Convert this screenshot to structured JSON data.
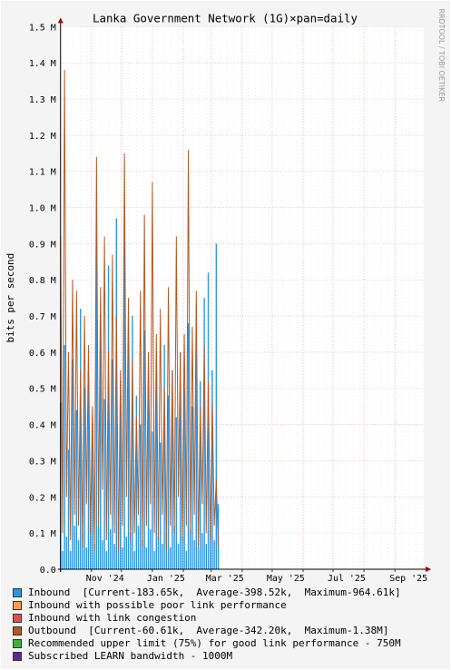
{
  "chart_data": {
    "type": "area",
    "title": "Lanka Government Network (1G)×pan=daily",
    "watermark": "RRDTOOL / TOBI OETIKER",
    "ylabel": "bits per second",
    "ylim": [
      0,
      1500000
    ],
    "y_ticks": [
      {
        "value": 0,
        "label": "0.0"
      },
      {
        "value": 100000,
        "label": "0.1 M"
      },
      {
        "value": 200000,
        "label": "0.2 M"
      },
      {
        "value": 300000,
        "label": "0.3 M"
      },
      {
        "value": 400000,
        "label": "0.4 M"
      },
      {
        "value": 500000,
        "label": "0.5 M"
      },
      {
        "value": 600000,
        "label": "0.6 M"
      },
      {
        "value": 700000,
        "label": "0.7 M"
      },
      {
        "value": 800000,
        "label": "0.8 M"
      },
      {
        "value": 900000,
        "label": "0.9 M"
      },
      {
        "value": 1000000,
        "label": "1.0 M"
      },
      {
        "value": 1100000,
        "label": "1.1 M"
      },
      {
        "value": 1200000,
        "label": "1.2 M"
      },
      {
        "value": 1300000,
        "label": "1.3 M"
      },
      {
        "value": 1400000,
        "label": "1.4 M"
      },
      {
        "value": 1500000,
        "label": "1.5 M"
      }
    ],
    "xlim": [
      "2024-10-01",
      "2025-09-30"
    ],
    "x_ticks": [
      {
        "value": "2024-11-01",
        "label": "Nov '24"
      },
      {
        "value": "2025-01-01",
        "label": "Jan '25"
      },
      {
        "value": "2025-03-01",
        "label": "Mar '25"
      },
      {
        "value": "2025-05-01",
        "label": "May '25"
      },
      {
        "value": "2025-07-01",
        "label": "Jul '25"
      },
      {
        "value": "2025-09-01",
        "label": "Sep '25"
      }
    ],
    "data_range": [
      "2024-10-01",
      "2025-03-08"
    ],
    "grid": true,
    "series": [
      {
        "name": "Inbound",
        "type": "area",
        "color": "#2b96e6",
        "current": "183.65k",
        "average": "398.52k",
        "maximum": "964.61k",
        "values": [
          0.46,
          0.05,
          0.62,
          0.09,
          0.33,
          0.05,
          0.58,
          0.12,
          0.44,
          0.08,
          0.72,
          0.1,
          0.5,
          0.06,
          0.55,
          0.15,
          0.4,
          0.07,
          0.95,
          0.12,
          0.64,
          0.08,
          0.47,
          0.05,
          0.84,
          0.11,
          0.58,
          0.07,
          0.97,
          0.13,
          0.52,
          0.06,
          0.9,
          0.09,
          0.63,
          0.1,
          0.7,
          0.05,
          0.48,
          0.12,
          0.4,
          0.08,
          0.66,
          0.06,
          0.52,
          0.11,
          0.38,
          0.05,
          0.58,
          0.09,
          0.35,
          0.07,
          0.62,
          0.1,
          0.48,
          0.06,
          0.55,
          0.12,
          0.42,
          0.07,
          0.6,
          0.09,
          0.5,
          0.05,
          0.68,
          0.11,
          0.45,
          0.08,
          0.73,
          0.06,
          0.52,
          0.1,
          0.75,
          0.07,
          0.82,
          0.12,
          0.55,
          0.08,
          0.9,
          0.18
        ]
      },
      {
        "name": "Inbound with possible poor link performance",
        "type": "legend-only",
        "color": "#f0a050"
      },
      {
        "name": "Inbound with link congestion",
        "type": "legend-only",
        "color": "#e05050"
      },
      {
        "name": "Outbound",
        "type": "line",
        "color": "#b25a22",
        "current": "60.61k",
        "average": "342.20k",
        "maximum": "1.38M",
        "values": [
          0.92,
          0.1,
          1.38,
          0.2,
          0.6,
          0.08,
          0.8,
          0.15,
          0.77,
          0.12,
          0.55,
          0.06,
          0.7,
          0.18,
          0.62,
          0.1,
          0.45,
          0.05,
          1.14,
          0.12,
          0.78,
          0.22,
          0.92,
          0.08,
          0.6,
          0.15,
          0.87,
          0.1,
          0.7,
          0.05,
          0.55,
          0.12,
          1.15,
          0.2,
          0.75,
          0.08,
          0.58,
          0.1,
          0.42,
          0.15,
          0.77,
          0.06,
          0.98,
          0.12,
          0.6,
          0.18,
          1.07,
          0.1,
          0.65,
          0.08,
          0.72,
          0.15,
          0.5,
          0.05,
          0.78,
          0.12,
          0.55,
          0.1,
          0.92,
          0.2,
          0.6,
          0.08,
          0.65,
          0.12,
          1.16,
          0.1,
          0.67,
          0.15,
          0.77,
          0.06,
          0.45,
          0.18,
          0.62,
          0.1,
          0.52,
          0.08,
          0.46,
          0.12,
          0.25,
          0.06
        ]
      },
      {
        "name": "Recommended upper limit (75%) for good link performance - 750M",
        "type": "legend-only",
        "color": "#3fae3f"
      },
      {
        "name": "Subscribed LEARN bandwidth - 1000M",
        "type": "legend-only",
        "color": "#5a2a9a"
      }
    ],
    "legend": {
      "placement": "bottom",
      "lines": [
        {
          "label": "Inbound  [Current-183.65k,  Average-398.52k,  Maximum-964.61k]",
          "color": "#2b96e6"
        },
        {
          "label": "Inbound with possible poor link performance",
          "color": "#f0a050"
        },
        {
          "label": "Inbound with link congestion",
          "color": "#e05050"
        },
        {
          "label": "Outbound  [Current-60.61k,  Average-342.20k,  Maximum-1.38M]",
          "color": "#b25a22"
        },
        {
          "label": "Recommended upper limit (75%) for good link performance - 750M",
          "color": "#3fae3f"
        },
        {
          "label": "Subscribed LEARN bandwidth - 1000M",
          "color": "#5a2a9a"
        }
      ]
    }
  }
}
